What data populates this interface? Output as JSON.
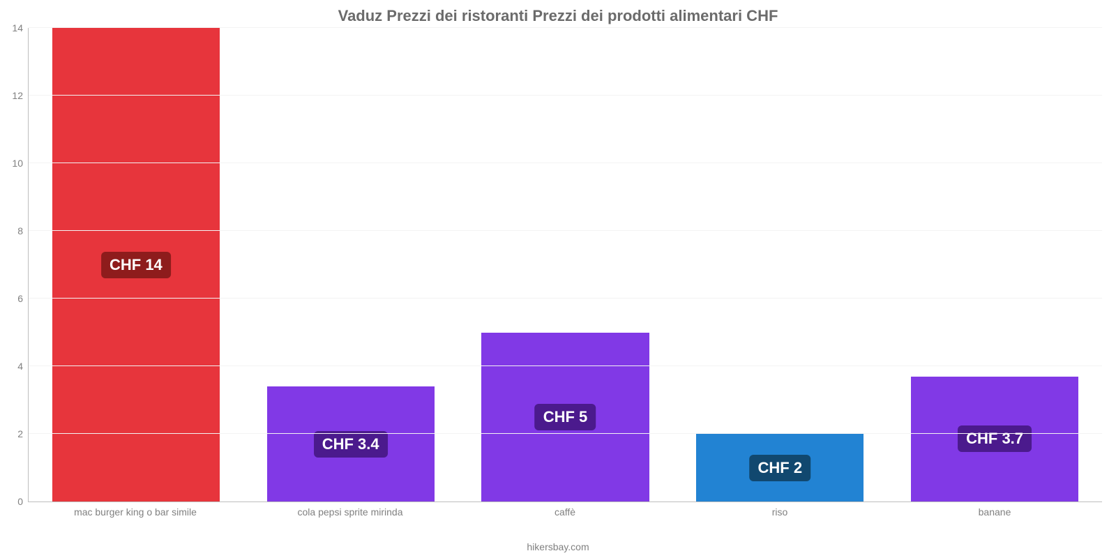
{
  "chart": {
    "type": "bar",
    "title": "Vaduz Prezzi dei ristoranti Prezzi dei prodotti alimentari CHF",
    "title_fontsize": 22,
    "title_color": "#6b6b6b",
    "background_color": "#ffffff",
    "grid_color": "#f3f3f3",
    "axis_color": "#bdbdbd",
    "tick_color": "#808080",
    "tick_fontsize": 14,
    "currency_prefix": "CHF ",
    "ylim": [
      0,
      14
    ],
    "ytick_step": 2,
    "bar_width_pct": 78,
    "value_badge": {
      "fontsize": 22,
      "text_color": "#ffffff",
      "border_radius": 6,
      "padding": "6px 12px"
    },
    "categories": [
      "mac burger king o bar simile",
      "cola pepsi sprite mirinda",
      "caffè",
      "riso",
      "banane"
    ],
    "values": [
      14,
      3.4,
      5,
      2,
      3.7
    ],
    "value_labels": [
      "CHF 14",
      "CHF 3.4",
      "CHF 5",
      "CHF 2",
      "CHF 3.7"
    ],
    "bar_colors": [
      "#e7353c",
      "#8139e6",
      "#8139e6",
      "#2283d3",
      "#8139e6"
    ],
    "badge_colors": [
      "#8e1c1c",
      "#4b1a8d",
      "#4b1a8d",
      "#11486f",
      "#4b1a8d"
    ],
    "footer": "hikersbay.com",
    "footer_color": "#808080",
    "footer_fontsize": 14
  }
}
